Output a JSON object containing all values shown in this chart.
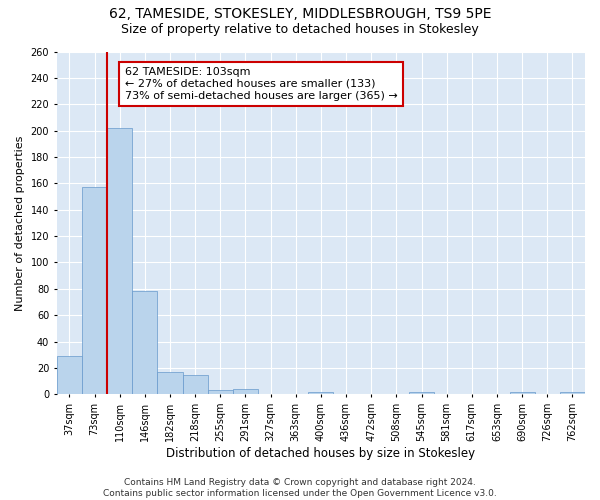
{
  "title1": "62, TAMESIDE, STOKESLEY, MIDDLESBROUGH, TS9 5PE",
  "title2": "Size of property relative to detached houses in Stokesley",
  "xlabel": "Distribution of detached houses by size in Stokesley",
  "ylabel": "Number of detached properties",
  "categories": [
    "37sqm",
    "73sqm",
    "110sqm",
    "146sqm",
    "182sqm",
    "218sqm",
    "255sqm",
    "291sqm",
    "327sqm",
    "363sqm",
    "400sqm",
    "436sqm",
    "472sqm",
    "508sqm",
    "545sqm",
    "581sqm",
    "617sqm",
    "653sqm",
    "690sqm",
    "726sqm",
    "762sqm"
  ],
  "values": [
    29,
    157,
    202,
    78,
    17,
    15,
    3,
    4,
    0,
    0,
    2,
    0,
    0,
    0,
    2,
    0,
    0,
    0,
    2,
    0,
    2
  ],
  "bar_color": "#bad4ec",
  "bar_edge_color": "#6699cc",
  "highlight_line_color": "#cc0000",
  "annotation_text": "62 TAMESIDE: 103sqm\n← 27% of detached houses are smaller (133)\n73% of semi-detached houses are larger (365) →",
  "annotation_box_color": "white",
  "annotation_box_edge_color": "#cc0000",
  "footnote": "Contains HM Land Registry data © Crown copyright and database right 2024.\nContains public sector information licensed under the Open Government Licence v3.0.",
  "ylim": [
    0,
    260
  ],
  "yticks": [
    0,
    20,
    40,
    60,
    80,
    100,
    120,
    140,
    160,
    180,
    200,
    220,
    240,
    260
  ],
  "background_color": "#dce8f5",
  "grid_color": "white",
  "title1_fontsize": 10,
  "title2_fontsize": 9,
  "xlabel_fontsize": 8.5,
  "ylabel_fontsize": 8,
  "tick_fontsize": 7,
  "annotation_fontsize": 8,
  "footnote_fontsize": 6.5
}
